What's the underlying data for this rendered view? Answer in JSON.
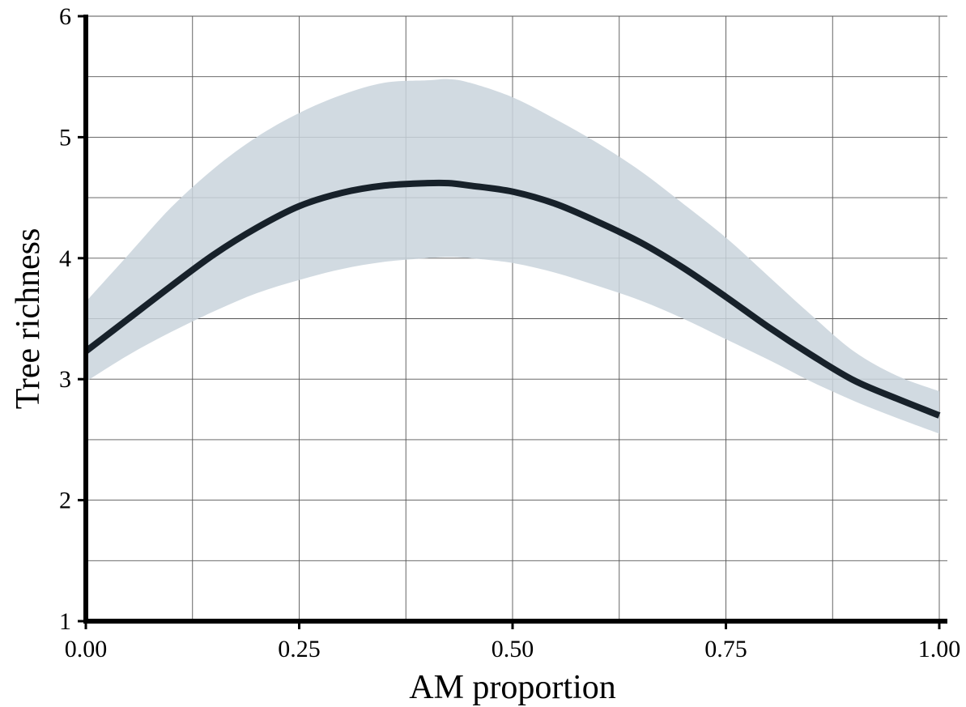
{
  "chart_data": {
    "type": "line",
    "xlabel": "AM proportion",
    "ylabel": "Tree richness",
    "xlim": [
      0,
      1
    ],
    "ylim": [
      1,
      6
    ],
    "x_major_ticks": [
      0,
      0.25,
      0.5,
      0.75,
      1
    ],
    "x_tick_labels": [
      "0.00",
      "0.25",
      "0.50",
      "0.75",
      "1.00"
    ],
    "x_minor_gridlines": [
      0.125,
      0.375,
      0.625,
      0.875
    ],
    "y_major_ticks": [
      1,
      2,
      3,
      4,
      5,
      6
    ],
    "y_tick_labels": [
      "1",
      "2",
      "3",
      "4",
      "5",
      "6"
    ],
    "y_minor_gridlines": [
      1.5,
      2.5,
      3.5,
      4.5,
      5.5
    ],
    "grid": true,
    "legend": "none",
    "colors": {
      "line": "#17212a",
      "band": "#c9d3dc",
      "grid": "#555555",
      "axis": "#000000"
    },
    "series": [
      {
        "x": [
          0,
          0.05,
          0.1,
          0.15,
          0.2,
          0.25,
          0.3,
          0.35,
          0.4,
          0.425,
          0.45,
          0.5,
          0.55,
          0.6,
          0.65,
          0.7,
          0.75,
          0.8,
          0.85,
          0.9,
          0.95,
          1.0
        ],
        "y": [
          3.23,
          3.5,
          3.77,
          4.03,
          4.25,
          4.43,
          4.54,
          4.6,
          4.62,
          4.62,
          4.6,
          4.55,
          4.45,
          4.3,
          4.13,
          3.92,
          3.68,
          3.43,
          3.2,
          2.99,
          2.84,
          2.7
        ],
        "lower": [
          2.98,
          3.2,
          3.39,
          3.56,
          3.71,
          3.82,
          3.91,
          3.97,
          4.0,
          4.01,
          4.0,
          3.96,
          3.88,
          3.77,
          3.65,
          3.5,
          3.33,
          3.16,
          2.98,
          2.82,
          2.68,
          2.55
        ],
        "upper": [
          3.64,
          4.03,
          4.42,
          4.74,
          5.0,
          5.2,
          5.35,
          5.45,
          5.47,
          5.48,
          5.45,
          5.33,
          5.15,
          4.95,
          4.72,
          4.45,
          4.17,
          3.85,
          3.53,
          3.23,
          3.03,
          2.9
        ]
      }
    ]
  }
}
